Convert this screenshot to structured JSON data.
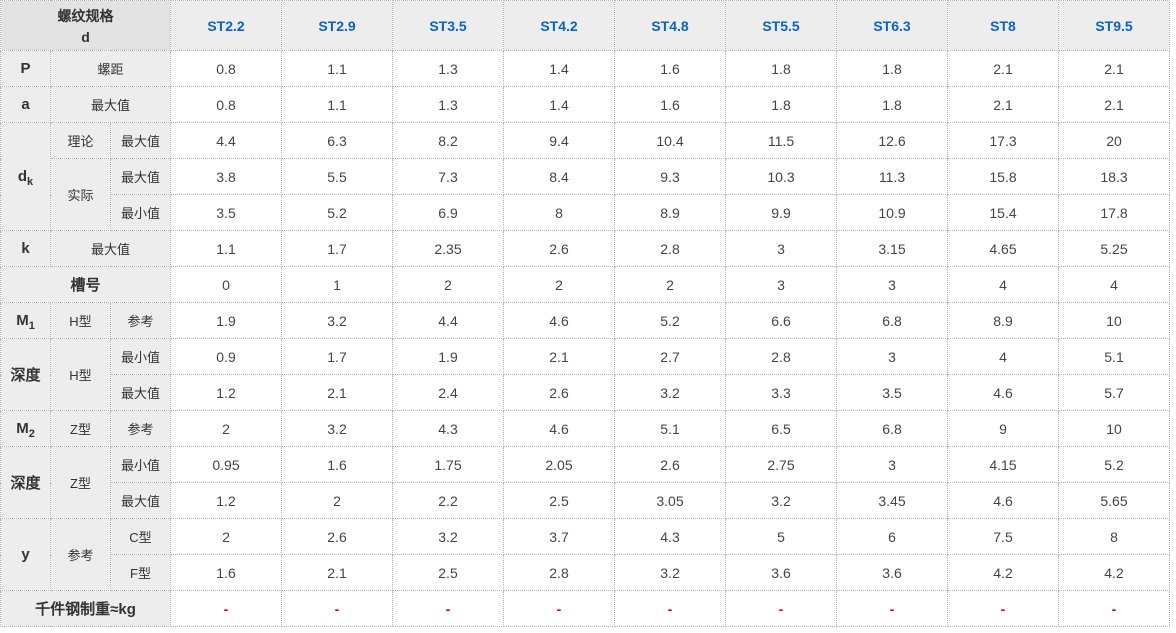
{
  "header": {
    "corner_title": "螺纹规格",
    "corner_subtitle": "d",
    "columns": [
      "ST2.2",
      "ST2.9",
      "ST3.5",
      "ST4.2",
      "ST4.8",
      "ST5.5",
      "ST6.3",
      "ST8",
      "ST9.5"
    ]
  },
  "labels": {
    "p": "P",
    "pitch": "螺距",
    "a": "a",
    "max": "最大值",
    "min": "最小值",
    "dk_base": "d",
    "dk_subscript": "k",
    "theory": "理论",
    "actual": "实际",
    "k": "k",
    "slot_no": "槽号",
    "m_base": "M",
    "m1_subscript": "1",
    "m2_subscript": "2",
    "depth": "深度",
    "h_type": "H型",
    "z_type": "Z型",
    "reference": "参考",
    "y": "y",
    "c_type": "C型",
    "f_type": "F型",
    "weight": "千件钢制重≈kg"
  },
  "values": {
    "p": [
      "0.8",
      "1.1",
      "1.3",
      "1.4",
      "1.6",
      "1.8",
      "1.8",
      "2.1",
      "2.1"
    ],
    "a": [
      "0.8",
      "1.1",
      "1.3",
      "1.4",
      "1.6",
      "1.8",
      "1.8",
      "2.1",
      "2.1"
    ],
    "dk_theory_max": [
      "4.4",
      "6.3",
      "8.2",
      "9.4",
      "10.4",
      "11.5",
      "12.6",
      "17.3",
      "20"
    ],
    "dk_actual_max": [
      "3.8",
      "5.5",
      "7.3",
      "8.4",
      "9.3",
      "10.3",
      "11.3",
      "15.8",
      "18.3"
    ],
    "dk_actual_min": [
      "3.5",
      "5.2",
      "6.9",
      "8",
      "8.9",
      "9.9",
      "10.9",
      "15.4",
      "17.8"
    ],
    "k_max": [
      "1.1",
      "1.7",
      "2.35",
      "2.6",
      "2.8",
      "3",
      "3.15",
      "4.65",
      "5.25"
    ],
    "slot": [
      "0",
      "1",
      "2",
      "2",
      "2",
      "3",
      "3",
      "4",
      "4"
    ],
    "m1_ref": [
      "1.9",
      "3.2",
      "4.4",
      "4.6",
      "5.2",
      "6.6",
      "6.8",
      "8.9",
      "10"
    ],
    "depth_h_min": [
      "0.9",
      "1.7",
      "1.9",
      "2.1",
      "2.7",
      "2.8",
      "3",
      "4",
      "5.1"
    ],
    "depth_h_max": [
      "1.2",
      "2.1",
      "2.4",
      "2.6",
      "3.2",
      "3.3",
      "3.5",
      "4.6",
      "5.7"
    ],
    "m2_ref": [
      "2",
      "3.2",
      "4.3",
      "4.6",
      "5.1",
      "6.5",
      "6.8",
      "9",
      "10"
    ],
    "depth_z_min": [
      "0.95",
      "1.6",
      "1.75",
      "2.05",
      "2.6",
      "2.75",
      "3",
      "4.15",
      "5.2"
    ],
    "depth_z_max": [
      "1.2",
      "2",
      "2.2",
      "2.5",
      "3.05",
      "3.2",
      "3.45",
      "4.6",
      "5.65"
    ],
    "y_c": [
      "2",
      "2.6",
      "3.2",
      "3.7",
      "4.3",
      "5",
      "6",
      "7.5",
      "8"
    ],
    "y_f": [
      "1.6",
      "2.1",
      "2.5",
      "2.8",
      "3.2",
      "3.6",
      "3.6",
      "4.2",
      "4.2"
    ],
    "weight": [
      "-",
      "-",
      "-",
      "-",
      "-",
      "-",
      "-",
      "-",
      "-"
    ]
  },
  "colors": {
    "column_header_blue": "#0b62c1",
    "dash_red": "#ee0000",
    "label_cell_bg": "#ededed",
    "corner_cell_bg": "#e3e3e3",
    "border_dotted": "#b5b5b5"
  }
}
